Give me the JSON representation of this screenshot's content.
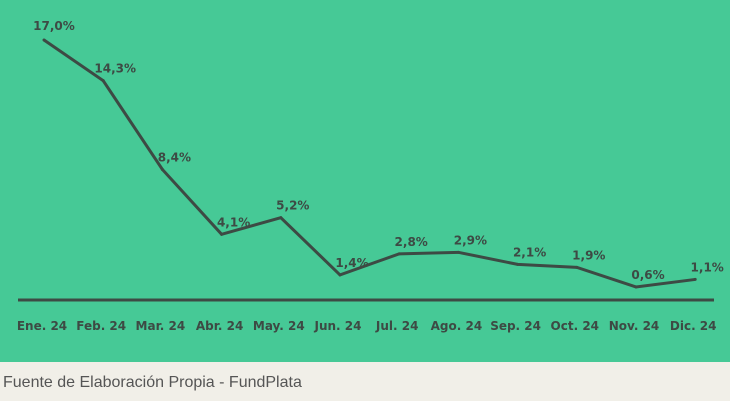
{
  "chart_data": {
    "type": "line",
    "categories": [
      "Ene. 24",
      "Feb. 24",
      "Mar. 24",
      "Abr. 24",
      "May. 24",
      "Jun. 24",
      "Jul. 24",
      "Ago. 24",
      "Sep. 24",
      "Oct. 24",
      "Nov. 24",
      "Dic. 24"
    ],
    "series": [
      {
        "values": [
          17.0,
          14.3,
          8.4,
          4.1,
          5.2,
          1.4,
          2.8,
          2.9,
          2.1,
          1.9,
          0.6,
          1.1
        ]
      }
    ],
    "data_labels": [
      "17,0%",
      "14,3%",
      "8,4%",
      "4,1%",
      "5,2%",
      "1,4%",
      "2,8%",
      "2,9%",
      "2,1%",
      "1,9%",
      "0,6%",
      "1,1%"
    ],
    "ylim": [
      0,
      17
    ],
    "grid": false,
    "legend": "none",
    "colors": {
      "background": "#46c996",
      "line": "#3d4a44",
      "text": "#3d4a44"
    }
  },
  "footer": {
    "source": "Fuente de Elaboración Propia - FundPlata"
  }
}
